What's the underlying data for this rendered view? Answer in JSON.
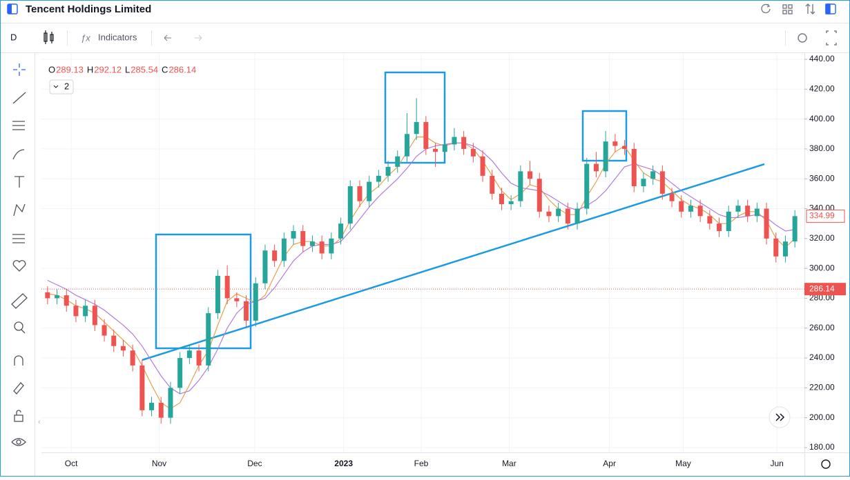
{
  "header": {
    "title": "Tencent Holdings Limited",
    "interval": "D",
    "indicators": "Indicators"
  },
  "legend": {
    "o_label": "O",
    "o": 289.13,
    "h_label": "H",
    "h": 292.12,
    "l_label": "L",
    "l": 285.54,
    "c_label": "C",
    "c": 286.14,
    "count": 2
  },
  "chart_data": {
    "type": "candlestick",
    "up_color": "#26a69a",
    "down_color": "#ef5350",
    "open": [
      284,
      280,
      282,
      275,
      268,
      275,
      262,
      255,
      248,
      245,
      235,
      205,
      210,
      200,
      220,
      240,
      245,
      235,
      270,
      295,
      280,
      278,
      265,
      290,
      312,
      305,
      320,
      325,
      315,
      318,
      310,
      320,
      330,
      355,
      345,
      358,
      362,
      368,
      375,
      390,
      398,
      380,
      378,
      383,
      388,
      380,
      375,
      362,
      350,
      343,
      345,
      365,
      360,
      338,
      335,
      340,
      330,
      340,
      370,
      365,
      385,
      382,
      380,
      355,
      360,
      365,
      350,
      345,
      338,
      342,
      335,
      330,
      325,
      338,
      342,
      335,
      340,
      320,
      308,
      318
    ],
    "high": [
      288,
      286,
      286,
      279,
      279,
      279,
      266,
      259,
      252,
      249,
      239,
      214,
      214,
      224,
      244,
      249,
      249,
      274,
      299,
      302,
      284,
      282,
      294,
      316,
      316,
      324,
      329,
      329,
      322,
      322,
      324,
      334,
      359,
      359,
      362,
      366,
      372,
      379,
      404,
      414,
      402,
      384,
      387,
      394,
      392,
      384,
      379,
      366,
      354,
      349,
      369,
      372,
      364,
      342,
      344,
      344,
      344,
      374,
      378,
      392,
      390,
      386,
      384,
      364,
      369,
      369,
      354,
      349,
      346,
      346,
      339,
      334,
      342,
      346,
      346,
      344,
      344,
      324,
      322,
      339
    ],
    "low": [
      276,
      276,
      271,
      264,
      264,
      258,
      251,
      244,
      241,
      231,
      201,
      201,
      196,
      196,
      216,
      236,
      231,
      231,
      266,
      276,
      274,
      261,
      261,
      286,
      301,
      301,
      316,
      311,
      311,
      306,
      306,
      316,
      326,
      341,
      341,
      354,
      358,
      364,
      371,
      386,
      376,
      368,
      374,
      379,
      376,
      371,
      358,
      346,
      339,
      339,
      341,
      356,
      334,
      331,
      331,
      326,
      326,
      336,
      361,
      361,
      378,
      376,
      351,
      351,
      356,
      346,
      341,
      334,
      334,
      331,
      326,
      321,
      321,
      334,
      331,
      331,
      316,
      304,
      304,
      314
    ],
    "close": [
      280,
      282,
      275,
      268,
      275,
      262,
      255,
      248,
      245,
      235,
      205,
      210,
      200,
      220,
      240,
      245,
      235,
      270,
      295,
      280,
      278,
      265,
      290,
      312,
      305,
      320,
      325,
      315,
      318,
      310,
      320,
      330,
      355,
      345,
      358,
      362,
      368,
      375,
      390,
      398,
      380,
      378,
      383,
      388,
      380,
      375,
      362,
      350,
      343,
      345,
      365,
      360,
      338,
      335,
      340,
      330,
      340,
      370,
      365,
      385,
      382,
      380,
      355,
      360,
      365,
      350,
      345,
      338,
      342,
      335,
      330,
      325,
      338,
      342,
      335,
      340,
      320,
      308,
      318,
      334.99
    ],
    "series": [
      {
        "color": "#e8a04a",
        "values": [
          283,
          282,
          279,
          275,
          273,
          270,
          264,
          258,
          252,
          246,
          235,
          222,
          210,
          206,
          210,
          222,
          235,
          245,
          262,
          278,
          283,
          280,
          277,
          282,
          295,
          308,
          316,
          318,
          318,
          315,
          315,
          320,
          332,
          342,
          350,
          355,
          362,
          368,
          378,
          388,
          388,
          384,
          382,
          384,
          384,
          380,
          372,
          362,
          352,
          346,
          350,
          356,
          354,
          346,
          340,
          336,
          336,
          348,
          358,
          370,
          378,
          382,
          372,
          364,
          360,
          358,
          352,
          346,
          342,
          340,
          336,
          330,
          330,
          335,
          338,
          338,
          332,
          320,
          314,
          320
        ]
      },
      {
        "color": "#b07ddb",
        "values": [
          292,
          289,
          286,
          282,
          279,
          276,
          272,
          267,
          262,
          256,
          248,
          238,
          228,
          220,
          216,
          218,
          225,
          234,
          246,
          260,
          270,
          276,
          278,
          280,
          287,
          296,
          305,
          311,
          315,
          316,
          316,
          318,
          325,
          333,
          341,
          348,
          354,
          360,
          367,
          375,
          380,
          382,
          383,
          384,
          384,
          382,
          378,
          372,
          364,
          357,
          354,
          353,
          352,
          349,
          345,
          341,
          339,
          342,
          346,
          352,
          360,
          368,
          370,
          368,
          366,
          362,
          357,
          352,
          348,
          344,
          340,
          336,
          334,
          334,
          335,
          336,
          334,
          329,
          325,
          326
        ]
      }
    ],
    "xticks": [
      {
        "value": 2.5,
        "label": "Oct"
      },
      {
        "value": 11.8,
        "label": "Nov"
      },
      {
        "value": 21.9,
        "label": "Dec"
      },
      {
        "value": 31.3,
        "label": "2023"
      },
      {
        "value": 39.5,
        "label": "Feb"
      },
      {
        "value": 48.8,
        "label": "Mar"
      },
      {
        "value": 59.4,
        "label": "Apr"
      },
      {
        "value": 67.2,
        "label": "May"
      },
      {
        "value": 77.1,
        "label": "Jun"
      }
    ],
    "ylim": [
      180,
      440
    ],
    "yticks": [
      {
        "value": 180,
        "label": "180.00"
      },
      {
        "value": 200,
        "label": "200.00"
      },
      {
        "value": 220,
        "label": "220.00"
      },
      {
        "value": 240,
        "label": "240.00"
      },
      {
        "value": 260,
        "label": "260.00"
      },
      {
        "value": 280,
        "label": "280.00"
      },
      {
        "value": 300,
        "label": "300.00"
      },
      {
        "value": 320,
        "label": "320.00"
      },
      {
        "value": 340,
        "label": "340.00"
      },
      {
        "value": 360,
        "label": "360.00"
      },
      {
        "value": 380,
        "label": "380.00"
      },
      {
        "value": 400,
        "label": "400.00"
      },
      {
        "value": 420,
        "label": "420.00"
      },
      {
        "value": 440,
        "label": "440.00"
      }
    ],
    "grid": true,
    "last_price": 334.99,
    "marker_price": 286.14
  }
}
